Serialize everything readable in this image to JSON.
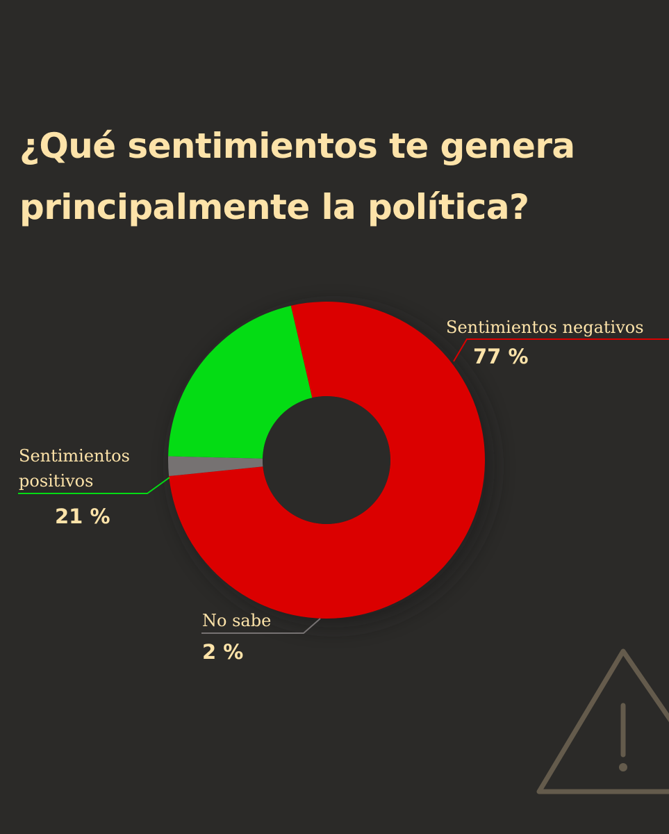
{
  "title": "¿Qué sentimientos te genera principalmente la política?",
  "warning_icon": "warning-triangle-icon",
  "chart_data": {
    "type": "pie",
    "donut": true,
    "slices": [
      {
        "label_lines": [
          "Sentimientos negativos"
        ],
        "value": 77,
        "display": "77 %",
        "color": "#db0000"
      },
      {
        "label_lines": [
          "No sabe"
        ],
        "value": 2,
        "display": "2 %",
        "color": "#767272"
      },
      {
        "label_lines": [
          "Sentimientos",
          "positivos"
        ],
        "value": 21,
        "display": "21 %",
        "color": "#04dc14"
      }
    ]
  }
}
